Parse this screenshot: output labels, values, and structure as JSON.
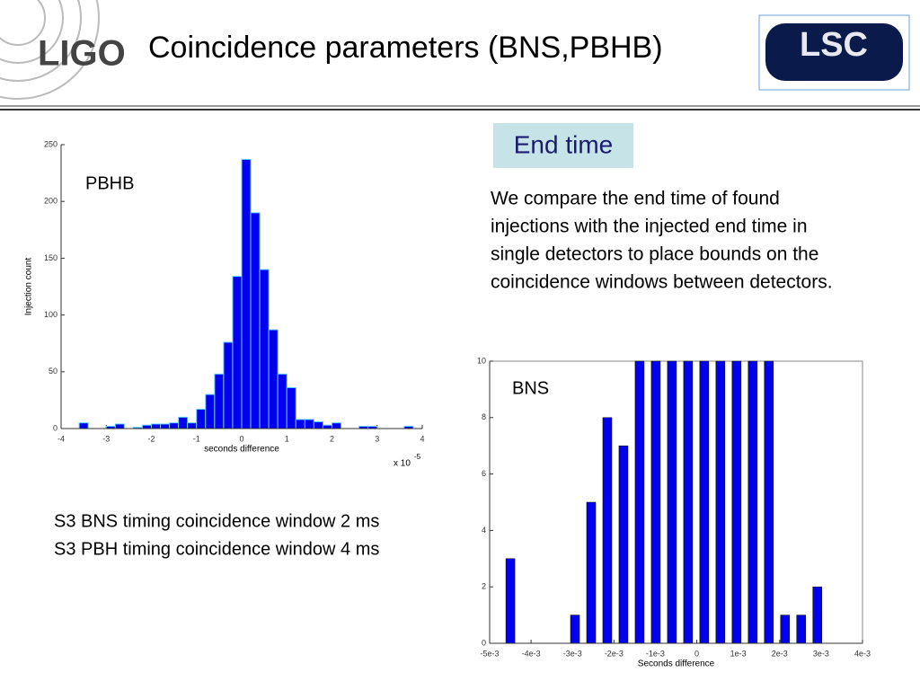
{
  "header": {
    "logo_left": "LIGO",
    "title": "Coincidence parameters (BNS,PBHB)",
    "logo_right": "LSC"
  },
  "section_label": "End time",
  "body_lines": [
    "We compare the end time of found",
    "injections with the injected end time in",
    "single detectors to place bounds on the",
    "coincidence windows between detectors."
  ],
  "notes": [
    "S3 BNS timing coincidence window 2 ms",
    "S3 PBH timing coincidence window 4 ms"
  ],
  "chart_data": [
    {
      "type": "histogram",
      "label": "PBHB",
      "xlabel": "seconds difference",
      "ylabel": "Injection count",
      "x_multiplier": "x 10",
      "x_multiplier_exponent": "-5",
      "color": "#0000ee",
      "box": false,
      "bins": [
        -4,
        -3.8,
        -3.6,
        -3.4,
        -3.2,
        -3,
        -2.8,
        -2.6,
        -2.4,
        -2.2,
        -2,
        -1.8,
        -1.6,
        -1.4,
        -1.2,
        -1,
        -0.8,
        -0.6,
        -0.4,
        -0.2,
        0,
        0.2,
        0.4,
        0.6,
        0.8,
        1,
        1.2,
        1.4,
        1.6,
        1.8,
        2,
        2.2,
        2.4,
        2.6,
        2.8,
        3,
        3.2,
        3.4,
        3.6,
        3.8,
        4
      ],
      "values": [
        0,
        0,
        5,
        0,
        0,
        2,
        4,
        0,
        1,
        3,
        4,
        4,
        5,
        10,
        5,
        17,
        30,
        48,
        76,
        134,
        237,
        190,
        140,
        87,
        48,
        36,
        8,
        8,
        6,
        3,
        5,
        0,
        0,
        2,
        2,
        0,
        0,
        0,
        2,
        0
      ],
      "xlim": [
        -4,
        4
      ],
      "xticks": [
        -4,
        -3,
        -2,
        -1,
        0,
        1,
        2,
        3,
        4
      ],
      "ylim": [
        0,
        250
      ],
      "yticks": [
        0,
        50,
        100,
        150,
        200,
        250
      ]
    },
    {
      "type": "bar",
      "label": "BNS",
      "xlabel": "Seconds difference",
      "color": "#0000ee",
      "box": true,
      "x": [
        -0.0045,
        -0.00294,
        -0.00255,
        -0.00216,
        -0.00177,
        -0.00138,
        -0.00099,
        -0.0006,
        -0.00021,
        0.00018,
        0.00057,
        0.00096,
        0.00135,
        0.00174,
        0.00213,
        0.00252,
        0.00291
      ],
      "values": [
        3,
        1,
        5,
        8,
        7,
        10,
        10,
        10,
        10,
        10,
        10,
        10,
        10,
        10,
        1,
        1,
        2
      ],
      "xlim": [
        -0.005,
        0.004
      ],
      "xticks": [
        {
          "value": -0.005,
          "label": "-5e-3"
        },
        {
          "value": -0.004,
          "label": "-4e-3"
        },
        {
          "value": -0.003,
          "label": "-3e-3"
        },
        {
          "value": -0.002,
          "label": "-2e-3"
        },
        {
          "value": -0.001,
          "label": "-1e-3"
        },
        0,
        {
          "value": 0.001,
          "label": "1e-3"
        },
        {
          "value": 0.002,
          "label": "2e-3"
        },
        {
          "value": 0.003,
          "label": "3e-3"
        },
        {
          "value": 0.004,
          "label": "4e-3"
        }
      ],
      "ylim": [
        0,
        10
      ],
      "yticks": [
        0,
        2,
        4,
        6,
        8,
        10
      ]
    }
  ]
}
